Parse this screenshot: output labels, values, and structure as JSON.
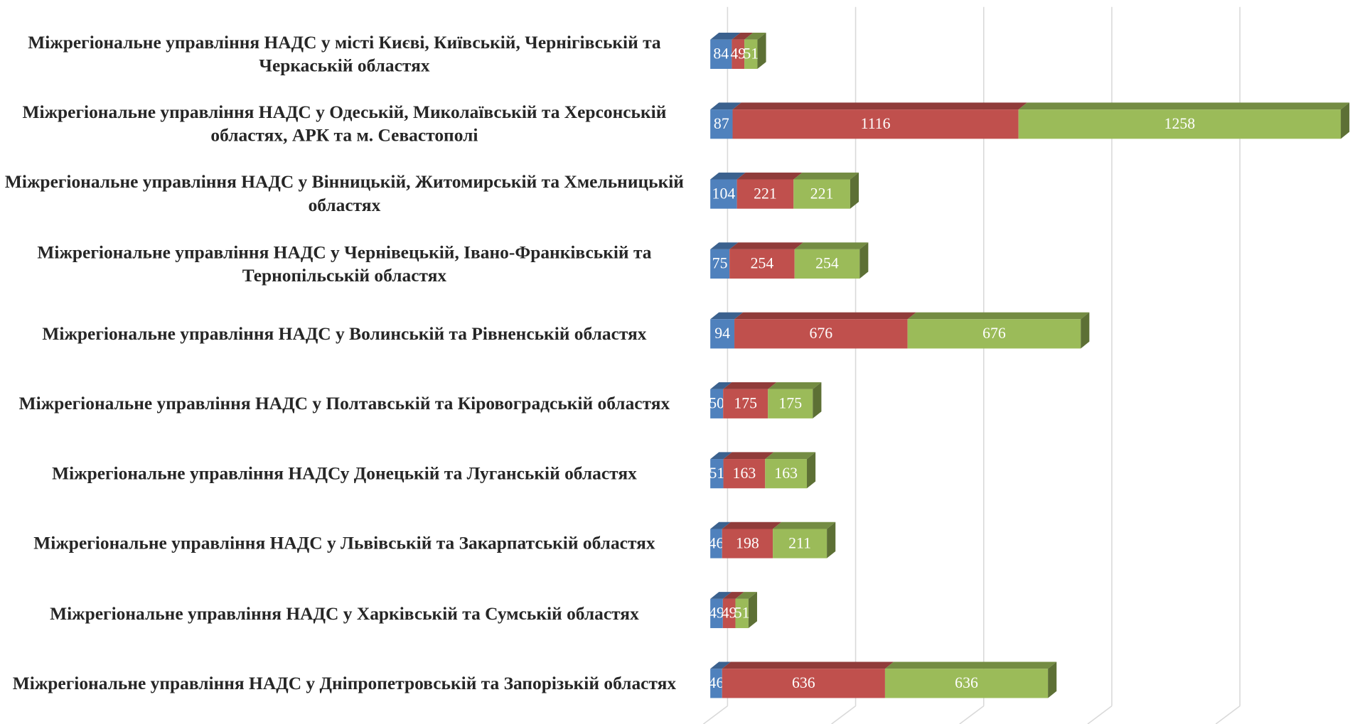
{
  "chart_data": {
    "type": "stacked-bar-3d-horizontal",
    "categories": [
      "Міжрегіональне управління НАДС у місті Києві, Київській, Чернігівській та Черкаській областях",
      "Міжрегіональне управління НАДС у Одеській, Миколаївській та Херсонській областях, АРК та м. Севастополі",
      "Міжрегіональне управління НАДС у Вінницькій, Житомирській та Хмельницькій областях",
      "Міжрегіональне управління НАДС у Чернівецькій, Івано-Франківській та Тернопільській областях",
      "Міжрегіональне управління НАДС у Волинській та Рівненській областях",
      "Міжрегіональне управління НАДС у Полтавській та Кіровоградській областях",
      "Міжрегіональне управління НАДСу Донецькій та Луганській областях",
      "Міжрегіональне управління НАДС у Львівській та Закарпатській областях",
      "Міжрегіональне управління НАДС у Харківській та Сумській областях",
      "Міжрегіональне управління НАДС у Дніпропетровській та Запорізькій областях"
    ],
    "series": [
      {
        "color": "#4f81bd",
        "values": [
          84,
          87,
          104,
          75,
          94,
          50,
          51,
          46,
          49,
          46
        ]
      },
      {
        "color": "#c0504d",
        "values": [
          49,
          1116,
          221,
          254,
          676,
          175,
          163,
          198,
          49,
          636
        ]
      },
      {
        "color": "#9bbb59",
        "values": [
          51,
          1258,
          221,
          254,
          676,
          175,
          163,
          211,
          51,
          636
        ]
      }
    ],
    "xlim": [
      0,
      2500
    ],
    "xticks": [
      0,
      500,
      1000,
      1500,
      2000
    ],
    "grid": true
  }
}
